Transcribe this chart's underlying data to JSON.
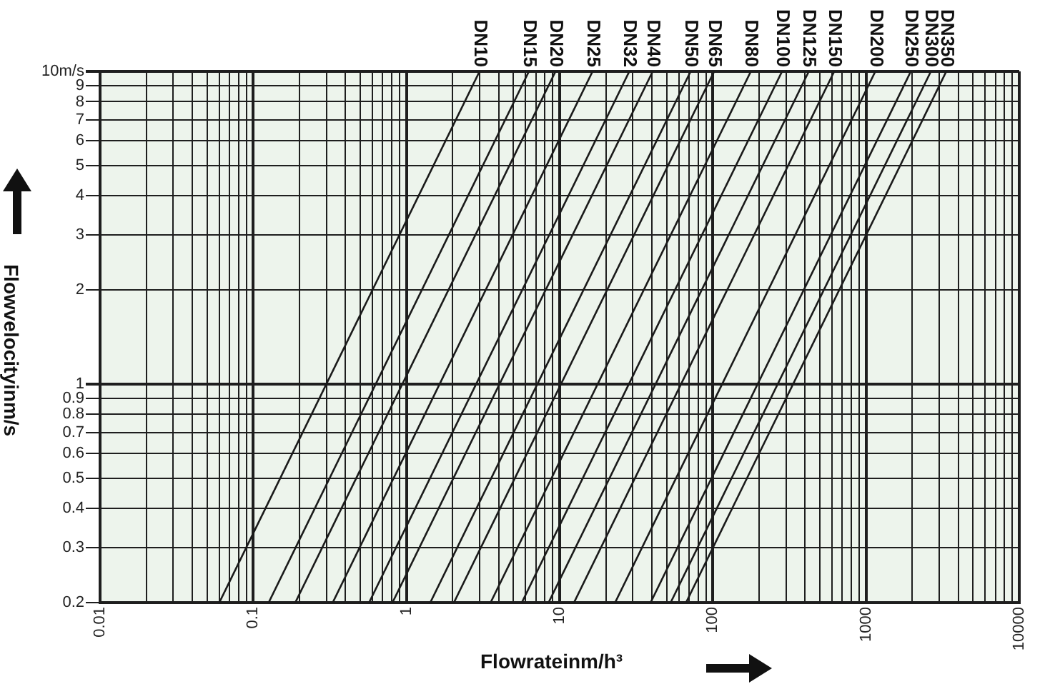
{
  "chart_data": {
    "type": "line",
    "xlabel": "Flowrateinm/h³",
    "ylabel": "Flowvelocityinm/s",
    "log": "xy",
    "grid": true,
    "legend": false,
    "marker": "none",
    "line_style": "solid",
    "xlim": [
      0.01,
      10000
    ],
    "ylim": [
      0.2,
      10
    ],
    "xticks": [
      0.01,
      {
        "value": 0.02,
        "label": null
      },
      {
        "value": 0.03,
        "label": null
      },
      {
        "value": 0.04,
        "label": null
      },
      {
        "value": 0.05,
        "label": null
      },
      {
        "value": 0.06,
        "label": null
      },
      {
        "value": 0.07,
        "label": null
      },
      {
        "value": 0.08,
        "label": null
      },
      {
        "value": 0.09,
        "label": null
      },
      0.1,
      {
        "value": 0.2,
        "label": null
      },
      {
        "value": 0.3,
        "label": null
      },
      {
        "value": 0.4,
        "label": null
      },
      {
        "value": 0.5,
        "label": null
      },
      {
        "value": 0.6,
        "label": null
      },
      {
        "value": 0.7,
        "label": null
      },
      {
        "value": 0.8,
        "label": null
      },
      {
        "value": 0.9,
        "label": null
      },
      1,
      {
        "value": 2,
        "label": null
      },
      {
        "value": 3,
        "label": null
      },
      {
        "value": 4,
        "label": null
      },
      {
        "value": 5,
        "label": null
      },
      {
        "value": 6,
        "label": null
      },
      {
        "value": 7,
        "label": null
      },
      {
        "value": 8,
        "label": null
      },
      {
        "value": 9,
        "label": null
      },
      10,
      {
        "value": 20,
        "label": null
      },
      {
        "value": 30,
        "label": null
      },
      {
        "value": 40,
        "label": null
      },
      {
        "value": 50,
        "label": null
      },
      {
        "value": 60,
        "label": null
      },
      {
        "value": 70,
        "label": null
      },
      {
        "value": 80,
        "label": null
      },
      {
        "value": 90,
        "label": null
      },
      100,
      {
        "value": 200,
        "label": null
      },
      {
        "value": 300,
        "label": null
      },
      {
        "value": 400,
        "label": null
      },
      {
        "value": 500,
        "label": null
      },
      {
        "value": 600,
        "label": null
      },
      {
        "value": 700,
        "label": null
      },
      {
        "value": 800,
        "label": null
      },
      {
        "value": 900,
        "label": null
      },
      1000,
      {
        "value": 2000,
        "label": null
      },
      {
        "value": 3000,
        "label": null
      },
      {
        "value": 4000,
        "label": null
      },
      {
        "value": 5000,
        "label": null
      },
      {
        "value": 6000,
        "label": null
      },
      {
        "value": 7000,
        "label": null
      },
      {
        "value": 8000,
        "label": null
      },
      {
        "value": 9000,
        "label": null
      },
      10000
    ],
    "yticks": [
      0.2,
      0.3,
      0.4,
      0.5,
      0.6,
      0.7,
      0.8,
      0.9,
      1,
      2,
      3,
      4,
      5,
      6,
      7,
      8,
      9,
      {
        "value": 10,
        "label": "10m/s"
      }
    ],
    "series": [
      {
        "name": "DN10",
        "color": "#1a1a1a",
        "x": [
          0.06,
          3.0
        ],
        "values": [
          0.2,
          10
        ]
      },
      {
        "name": "DN15",
        "color": "#1a1a1a",
        "x": [
          0.126,
          6.3
        ],
        "values": [
          0.2,
          10
        ]
      },
      {
        "name": "DN20",
        "color": "#1a1a1a",
        "x": [
          0.188,
          9.4
        ],
        "values": [
          0.2,
          10
        ]
      },
      {
        "name": "DN25",
        "color": "#1a1a1a",
        "x": [
          0.33,
          16.4
        ],
        "values": [
          0.2,
          10
        ]
      },
      {
        "name": "DN32",
        "color": "#1a1a1a",
        "x": [
          0.57,
          28.5
        ],
        "values": [
          0.2,
          10
        ]
      },
      {
        "name": "DN40",
        "color": "#1a1a1a",
        "x": [
          0.81,
          40.5
        ],
        "values": [
          0.2,
          10
        ]
      },
      {
        "name": "DN50",
        "color": "#1a1a1a",
        "x": [
          1.43,
          71.6
        ],
        "values": [
          0.2,
          10
        ]
      },
      {
        "name": "DN65",
        "color": "#1a1a1a",
        "x": [
          2.04,
          102
        ],
        "values": [
          0.2,
          10
        ]
      },
      {
        "name": "DN80",
        "color": "#1a1a1a",
        "x": [
          3.54,
          177
        ],
        "values": [
          0.2,
          10
        ]
      },
      {
        "name": "DN100",
        "color": "#1a1a1a",
        "x": [
          5.66,
          283
        ],
        "values": [
          0.2,
          10
        ]
      },
      {
        "name": "DN125",
        "color": "#1a1a1a",
        "x": [
          8.46,
          423
        ],
        "values": [
          0.2,
          10
        ]
      },
      {
        "name": "DN150",
        "color": "#1a1a1a",
        "x": [
          12.4,
          620
        ],
        "values": [
          0.2,
          10
        ]
      },
      {
        "name": "DN200",
        "color": "#1a1a1a",
        "x": [
          23,
          1150
        ],
        "values": [
          0.2,
          10
        ]
      },
      {
        "name": "DN250",
        "color": "#1a1a1a",
        "x": [
          39.2,
          1960
        ],
        "values": [
          0.2,
          10
        ]
      },
      {
        "name": "DN300",
        "color": "#1a1a1a",
        "x": [
          53,
          2650
        ],
        "values": [
          0.2,
          10
        ]
      },
      {
        "name": "DN350",
        "color": "#1a1a1a",
        "x": [
          66.8,
          3340
        ],
        "values": [
          0.2,
          10
        ]
      }
    ]
  }
}
